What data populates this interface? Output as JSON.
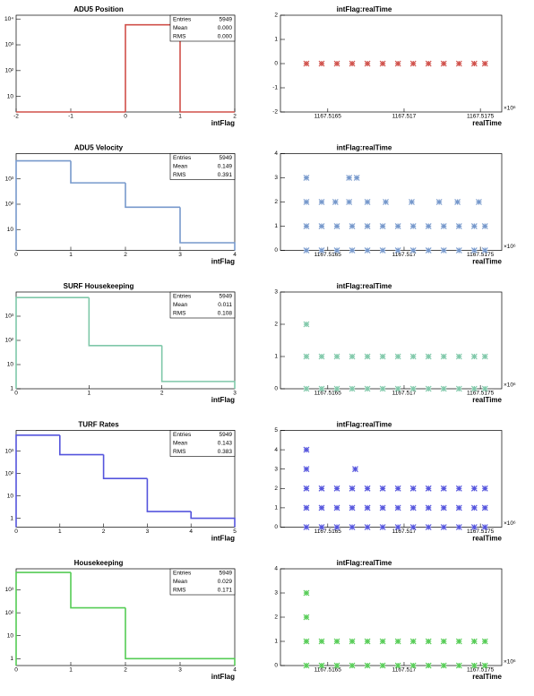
{
  "chart_data": [
    {
      "type": "histogram",
      "title": "ADU5 Position",
      "x_label": "intFlag",
      "color": "#d0504a",
      "log_y": true,
      "bins": [
        -2,
        -1,
        0,
        1,
        2
      ],
      "values": [
        0,
        0,
        5949,
        0
      ],
      "xlim": [
        -2,
        2
      ],
      "xticks": [
        -2,
        -1,
        0,
        1,
        2
      ],
      "ylim": [
        2.5,
        14000
      ],
      "yticks": [
        10,
        {
          "value": 100,
          "label": "10²"
        },
        {
          "value": 1000,
          "label": "10³"
        },
        {
          "value": 10000,
          "label": "10⁴"
        }
      ],
      "stats": [
        [
          "Entries",
          "5949"
        ],
        [
          "Mean",
          "0.000"
        ],
        [
          "RMS",
          "0.000"
        ]
      ]
    },
    {
      "type": "scatter",
      "title": "intFlag:realTime",
      "x_label": "realTime",
      "x_exponent_label": "×10⁶",
      "color": "#d0504a",
      "x": [
        1167.51636,
        1167.51646,
        1167.51656,
        1167.51666,
        1167.51676,
        1167.51686,
        1167.51696,
        1167.51706,
        1167.51716,
        1167.51726,
        1167.51736,
        1167.51746,
        1167.51753
      ],
      "y": [
        0,
        0,
        0,
        0,
        0,
        0,
        0,
        0,
        0,
        0,
        0,
        0,
        0
      ],
      "xlim": [
        1167.51619,
        1167.51764
      ],
      "xticks": [
        1167.5165,
        1167.517,
        1167.5175
      ],
      "ylim": [
        -2,
        2
      ],
      "yticks": [
        -2,
        -1,
        0,
        1,
        2
      ]
    },
    {
      "type": "histogram",
      "title": "ADU5 Velocity",
      "x_label": "intFlag",
      "color": "#7799cc",
      "log_y": true,
      "bins": [
        0,
        1,
        2,
        3,
        4
      ],
      "values": [
        5170,
        700,
        76,
        3
      ],
      "xlim": [
        0,
        4
      ],
      "xticks": [
        0,
        1,
        2,
        3,
        4
      ],
      "ylim": [
        1.5,
        10000
      ],
      "yticks": [
        10,
        {
          "value": 100,
          "label": "10²"
        },
        {
          "value": 1000,
          "label": "10³"
        }
      ],
      "stats": [
        [
          "Entries",
          "5949"
        ],
        [
          "Mean",
          "0.149"
        ],
        [
          "RMS",
          "0.391"
        ]
      ]
    },
    {
      "type": "scatter",
      "title": "intFlag:realTime",
      "x_label": "realTime",
      "x_exponent_label": "×10⁶",
      "color": "#7799cc",
      "x": [
        1167.51636,
        1167.51646,
        1167.51656,
        1167.51666,
        1167.51676,
        1167.51686,
        1167.51696,
        1167.51706,
        1167.51716,
        1167.51726,
        1167.51736,
        1167.51746,
        1167.51753,
        1167.51636,
        1167.51646,
        1167.51656,
        1167.51666,
        1167.51676,
        1167.51686,
        1167.51696,
        1167.51706,
        1167.51716,
        1167.51726,
        1167.51736,
        1167.51746,
        1167.51753,
        1167.51636,
        1167.51646,
        1167.51655,
        1167.51664,
        1167.51676,
        1167.51688,
        1167.51705,
        1167.51723,
        1167.51735,
        1167.51749,
        1167.51636,
        1167.51664,
        1167.51669
      ],
      "y": [
        0,
        0,
        0,
        0,
        0,
        0,
        0,
        0,
        0,
        0,
        0,
        0,
        0,
        1,
        1,
        1,
        1,
        1,
        1,
        1,
        1,
        1,
        1,
        1,
        1,
        1,
        2,
        2,
        2,
        2,
        2,
        2,
        2,
        2,
        2,
        2,
        3,
        3,
        3
      ],
      "xlim": [
        1167.51619,
        1167.51764
      ],
      "xticks": [
        1167.5165,
        1167.517,
        1167.5175
      ],
      "ylim": [
        0,
        4
      ],
      "yticks": [
        0,
        1,
        2,
        3,
        4
      ]
    },
    {
      "type": "histogram",
      "title": "SURF Housekeeping",
      "x_label": "intFlag",
      "color": "#7fc8a9",
      "log_y": true,
      "bins": [
        0,
        1,
        2,
        3
      ],
      "values": [
        5886,
        61,
        2
      ],
      "xlim": [
        0,
        3
      ],
      "xticks": [
        0,
        1,
        2,
        3
      ],
      "ylim": [
        1,
        10000
      ],
      "yticks": [
        1,
        10,
        {
          "value": 100,
          "label": "10²"
        },
        {
          "value": 1000,
          "label": "10³"
        }
      ],
      "stats": [
        [
          "Entries",
          "5949"
        ],
        [
          "Mean",
          "0.011"
        ],
        [
          "RMS",
          "0.108"
        ]
      ]
    },
    {
      "type": "scatter",
      "title": "intFlag:realTime",
      "x_label": "realTime",
      "x_exponent_label": "×10⁶",
      "color": "#7fc8a9",
      "x": [
        1167.51636,
        1167.51646,
        1167.51656,
        1167.51666,
        1167.51676,
        1167.51686,
        1167.51696,
        1167.51706,
        1167.51716,
        1167.51726,
        1167.51736,
        1167.51746,
        1167.51753,
        1167.51636,
        1167.51646,
        1167.51656,
        1167.51666,
        1167.51676,
        1167.51686,
        1167.51696,
        1167.51706,
        1167.51716,
        1167.51726,
        1167.51736,
        1167.51746,
        1167.51753,
        1167.51636
      ],
      "y": [
        0,
        0,
        0,
        0,
        0,
        0,
        0,
        0,
        0,
        0,
        0,
        0,
        0,
        1,
        1,
        1,
        1,
        1,
        1,
        1,
        1,
        1,
        1,
        1,
        1,
        1,
        2
      ],
      "xlim": [
        1167.51619,
        1167.51764
      ],
      "xticks": [
        1167.5165,
        1167.517,
        1167.5175
      ],
      "ylim": [
        0,
        3
      ],
      "yticks": [
        0,
        1,
        2,
        3
      ]
    },
    {
      "type": "histogram",
      "title": "TURF Rates",
      "x_label": "intFlag",
      "color": "#5555dd",
      "log_y": true,
      "bins": [
        0,
        1,
        2,
        3,
        4,
        5
      ],
      "values": [
        5186,
        700,
        60,
        2,
        1
      ],
      "xlim": [
        0,
        5
      ],
      "xticks": [
        0,
        1,
        2,
        3,
        4,
        5
      ],
      "ylim": [
        0.4,
        8500
      ],
      "yticks": [
        1,
        10,
        {
          "value": 100,
          "label": "10²"
        },
        {
          "value": 1000,
          "label": "10³"
        }
      ],
      "stats": [
        [
          "Entries",
          "5949"
        ],
        [
          "Mean",
          "0.143"
        ],
        [
          "RMS",
          "0.383"
        ]
      ]
    },
    {
      "type": "scatter",
      "title": "intFlag:realTime",
      "x_label": "realTime",
      "x_exponent_label": "×10⁶",
      "color": "#5555dd",
      "x": [
        1167.51636,
        1167.51646,
        1167.51656,
        1167.51666,
        1167.51676,
        1167.51686,
        1167.51696,
        1167.51706,
        1167.51716,
        1167.51726,
        1167.51736,
        1167.51746,
        1167.51753,
        1167.51636,
        1167.51646,
        1167.51656,
        1167.51666,
        1167.51676,
        1167.51686,
        1167.51696,
        1167.51706,
        1167.51716,
        1167.51726,
        1167.51736,
        1167.51746,
        1167.51753,
        1167.51636,
        1167.51646,
        1167.51656,
        1167.51666,
        1167.51676,
        1167.51686,
        1167.51696,
        1167.51706,
        1167.51716,
        1167.51726,
        1167.51736,
        1167.51746,
        1167.51753,
        1167.51636,
        1167.51668,
        1167.51636
      ],
      "y": [
        0,
        0,
        0,
        0,
        0,
        0,
        0,
        0,
        0,
        0,
        0,
        0,
        0,
        1,
        1,
        1,
        1,
        1,
        1,
        1,
        1,
        1,
        1,
        1,
        1,
        1,
        2,
        2,
        2,
        2,
        2,
        2,
        2,
        2,
        2,
        2,
        2,
        2,
        2,
        3,
        3,
        4
      ],
      "xlim": [
        1167.51619,
        1167.51764
      ],
      "xticks": [
        1167.5165,
        1167.517,
        1167.5175
      ],
      "ylim": [
        0,
        5
      ],
      "yticks": [
        0,
        1,
        2,
        3,
        4,
        5
      ]
    },
    {
      "type": "histogram",
      "title": "Housekeeping",
      "x_label": "intFlag",
      "color": "#55cc55",
      "log_y": true,
      "bins": [
        0,
        1,
        2,
        3,
        4
      ],
      "values": [
        5782,
        165,
        1,
        1
      ],
      "xlim": [
        0,
        4
      ],
      "xticks": [
        0,
        1,
        2,
        3,
        4
      ],
      "ylim": [
        0.5,
        8300
      ],
      "yticks": [
        1,
        10,
        {
          "value": 100,
          "label": "10²"
        },
        {
          "value": 1000,
          "label": "10³"
        }
      ],
      "stats": [
        [
          "Entries",
          "5949"
        ],
        [
          "Mean",
          "0.029"
        ],
        [
          "RMS",
          "0.171"
        ]
      ]
    },
    {
      "type": "scatter",
      "title": "intFlag:realTime",
      "x_label": "realTime",
      "x_exponent_label": "×10⁶",
      "color": "#55cc55",
      "x": [
        1167.51636,
        1167.51646,
        1167.51656,
        1167.51666,
        1167.51676,
        1167.51686,
        1167.51696,
        1167.51706,
        1167.51716,
        1167.51726,
        1167.51736,
        1167.51746,
        1167.51753,
        1167.51636,
        1167.51646,
        1167.51656,
        1167.51666,
        1167.51676,
        1167.51686,
        1167.51696,
        1167.51706,
        1167.51716,
        1167.51726,
        1167.51736,
        1167.51746,
        1167.51753,
        1167.51636,
        1167.51636
      ],
      "y": [
        0,
        0,
        0,
        0,
        0,
        0,
        0,
        0,
        0,
        0,
        0,
        0,
        0,
        1,
        1,
        1,
        1,
        1,
        1,
        1,
        1,
        1,
        1,
        1,
        1,
        1,
        2,
        3
      ],
      "xlim": [
        1167.51619,
        1167.51764
      ],
      "xticks": [
        1167.5165,
        1167.517,
        1167.5175
      ],
      "ylim": [
        0,
        4
      ],
      "yticks": [
        0,
        1,
        2,
        3,
        4
      ]
    }
  ]
}
